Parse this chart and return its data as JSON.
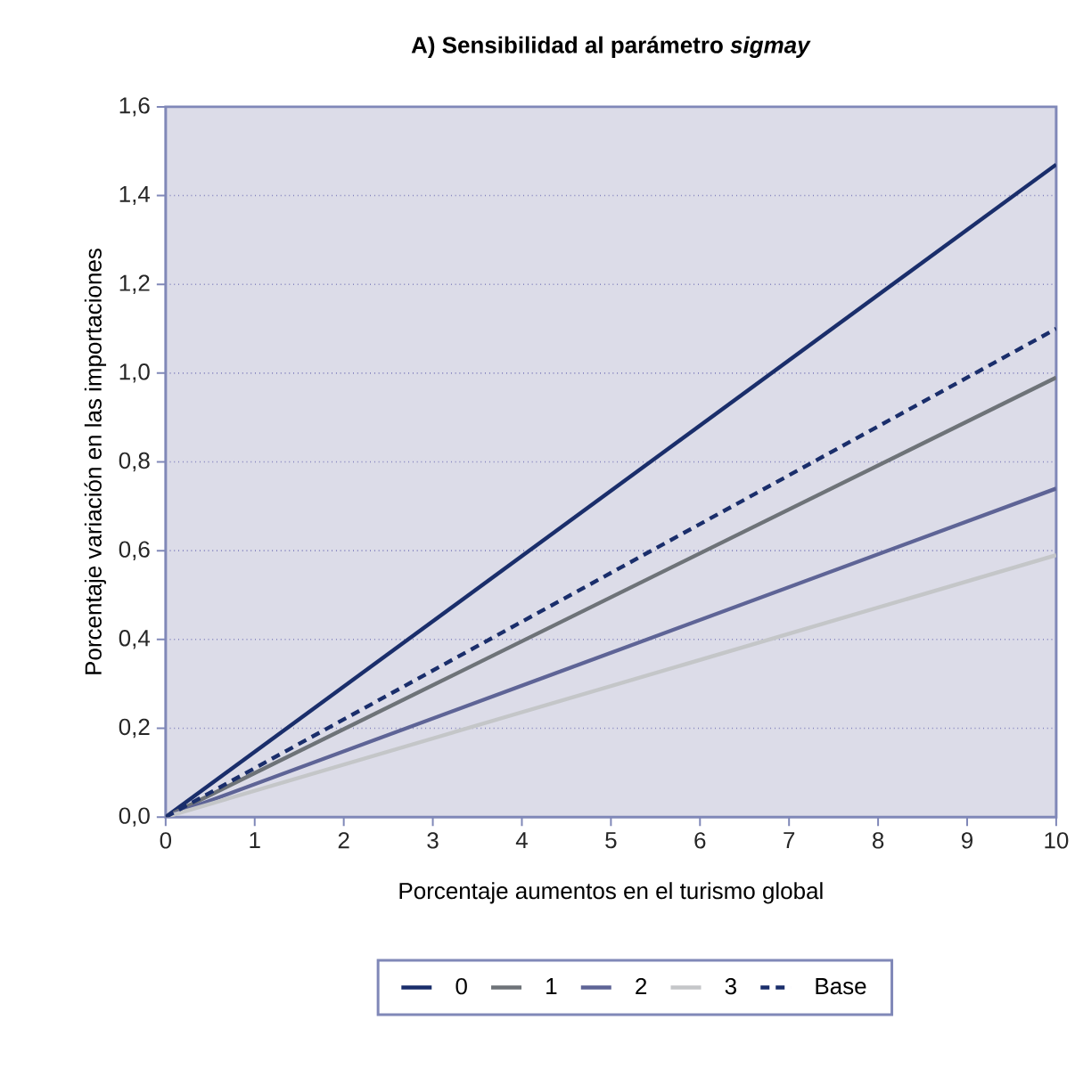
{
  "chart_data": {
    "type": "line",
    "title": "A) Sensibilidad al parámetro *sigmay*",
    "xlabel": "Porcentaje aumentos en el turismo global",
    "ylabel": "Porcentaje variación en las importaciones",
    "x": [
      0,
      10
    ],
    "series": [
      {
        "name": "0",
        "color": "#1a2e6b",
        "values": [
          0,
          1.47
        ],
        "line_style": "solid"
      },
      {
        "name": "1",
        "color": "#6e7378",
        "values": [
          0,
          0.99
        ],
        "line_style": "solid"
      },
      {
        "name": "2",
        "color": "#5e6496",
        "values": [
          0,
          0.74
        ],
        "line_style": "solid"
      },
      {
        "name": "3",
        "color": "#c4c6c8",
        "values": [
          0,
          0.59
        ],
        "line_style": "solid"
      },
      {
        "name": "Base",
        "color": "#1a2e6b",
        "values": [
          0,
          1.1
        ],
        "line_style": "dashed"
      }
    ],
    "xlim": [
      0,
      10
    ],
    "ylim": [
      0,
      1.6
    ],
    "xticks": [
      0,
      1,
      2,
      3,
      4,
      5,
      6,
      7,
      8,
      9,
      10
    ],
    "yticks": [
      {
        "value": 0,
        "label": "0,0"
      },
      {
        "value": 0.2,
        "label": "0,2"
      },
      {
        "value": 0.4,
        "label": "0,4"
      },
      {
        "value": 0.6,
        "label": "0,6"
      },
      {
        "value": 0.8,
        "label": "0,8"
      },
      {
        "value": 1.0,
        "label": "1,0"
      },
      {
        "value": 1.2,
        "label": "1,2"
      },
      {
        "value": 1.4,
        "label": "1,4"
      },
      {
        "value": 1.6,
        "label": "1,6"
      }
    ],
    "grid": "y",
    "legend": "bottom",
    "marker": "none"
  }
}
